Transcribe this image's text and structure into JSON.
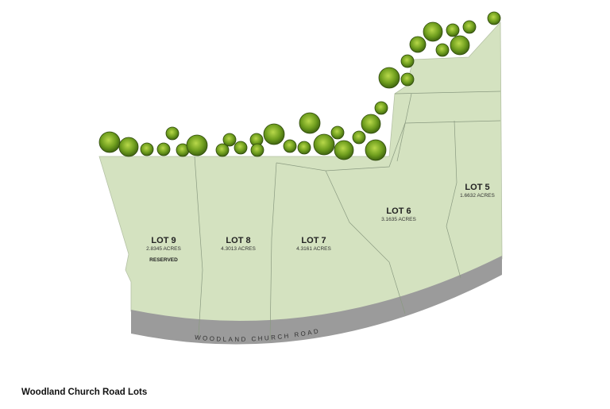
{
  "caption": "Woodland Church Road Lots",
  "road_label": "WOODLAND CHURCH ROAD",
  "colors": {
    "land": "#d4e2c0",
    "road": "#9b9b9b",
    "tree": "#6a9a1c",
    "lot_line": "#8a9a80"
  },
  "lots": [
    {
      "name": "LOT 9",
      "acres": "2.8345 ACRES",
      "note": "RESERVED"
    },
    {
      "name": "LOT 8",
      "acres": "4.3013 ACRES"
    },
    {
      "name": "LOT 7",
      "acres": "4.3161 ACRES"
    },
    {
      "name": "LOT 6",
      "acres": "3.1635 ACRES"
    },
    {
      "name": "LOT 5",
      "acres": "1.6632 ACRES"
    }
  ]
}
